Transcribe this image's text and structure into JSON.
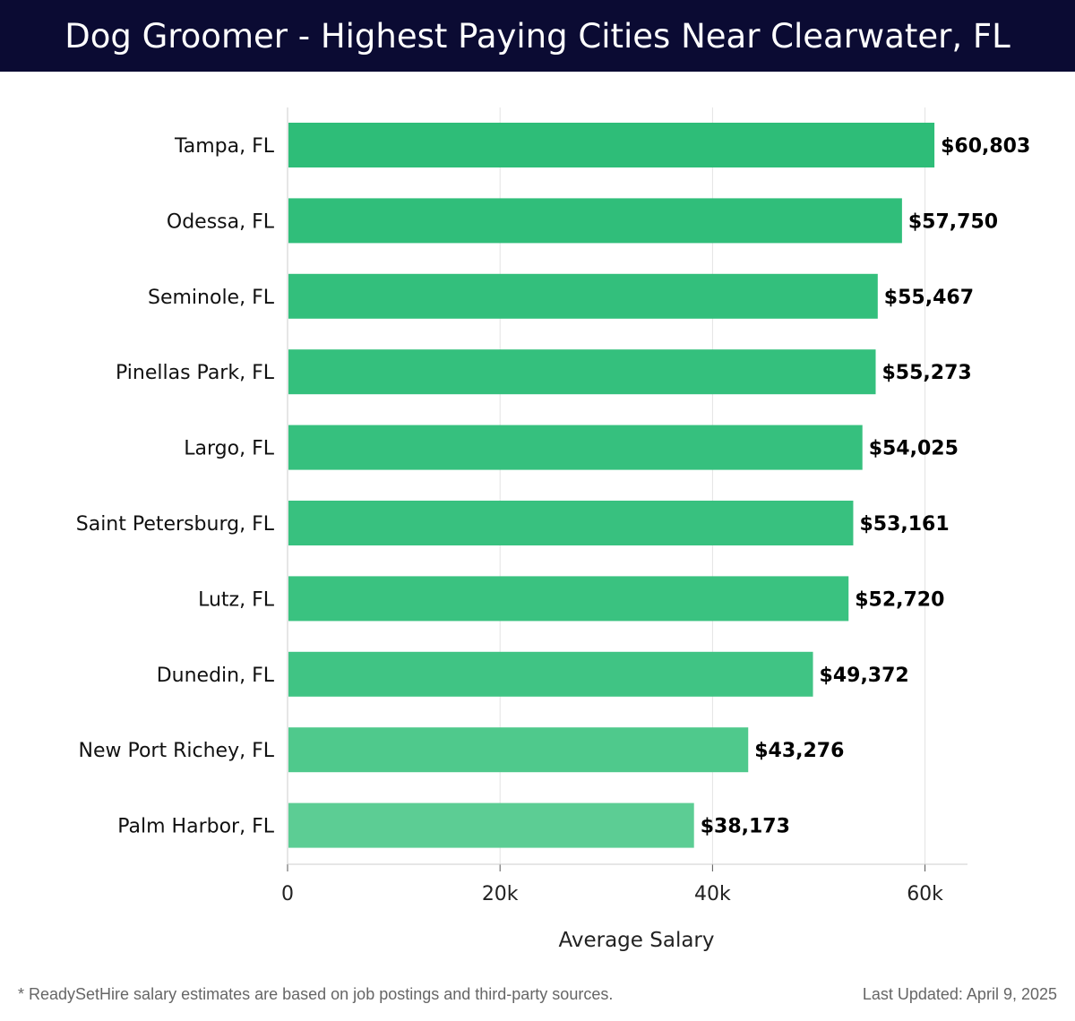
{
  "header": {
    "title": "Dog Groomer - Highest Paying Cities Near Clearwater, FL"
  },
  "chart_data": {
    "type": "bar",
    "orientation": "horizontal",
    "categories": [
      "Tampa, FL",
      "Odessa, FL",
      "Seminole, FL",
      "Pinellas Park, FL",
      "Largo, FL",
      "Saint Petersburg, FL",
      "Lutz, FL",
      "Dunedin, FL",
      "New Port Richey, FL",
      "Palm Harbor, FL"
    ],
    "values": [
      60803,
      57750,
      55467,
      55273,
      54025,
      53161,
      52720,
      49372,
      43276,
      38173
    ],
    "value_labels": [
      "$60,803",
      "$57,750",
      "$55,467",
      "$55,273",
      "$54,025",
      "$53,161",
      "$52,720",
      "$49,372",
      "$43,276",
      "$38,173"
    ],
    "xlabel": "Average Salary",
    "xlim": [
      0,
      64000
    ],
    "xticks": [
      0,
      20000,
      40000,
      60000
    ],
    "xtick_labels": [
      "0",
      "20k",
      "40k",
      "60k"
    ],
    "grid": true,
    "bar_colors": [
      "#2ebd78",
      "#30be7a",
      "#33bf7c",
      "#34c07d",
      "#36c07e",
      "#38c17f",
      "#3ac280",
      "#40c484",
      "#4fc98c",
      "#5ccd94"
    ]
  },
  "footer": {
    "note": "* ReadySetHire salary estimates are based on job postings and third-party sources.",
    "updated": "Last Updated: April 9, 2025"
  }
}
